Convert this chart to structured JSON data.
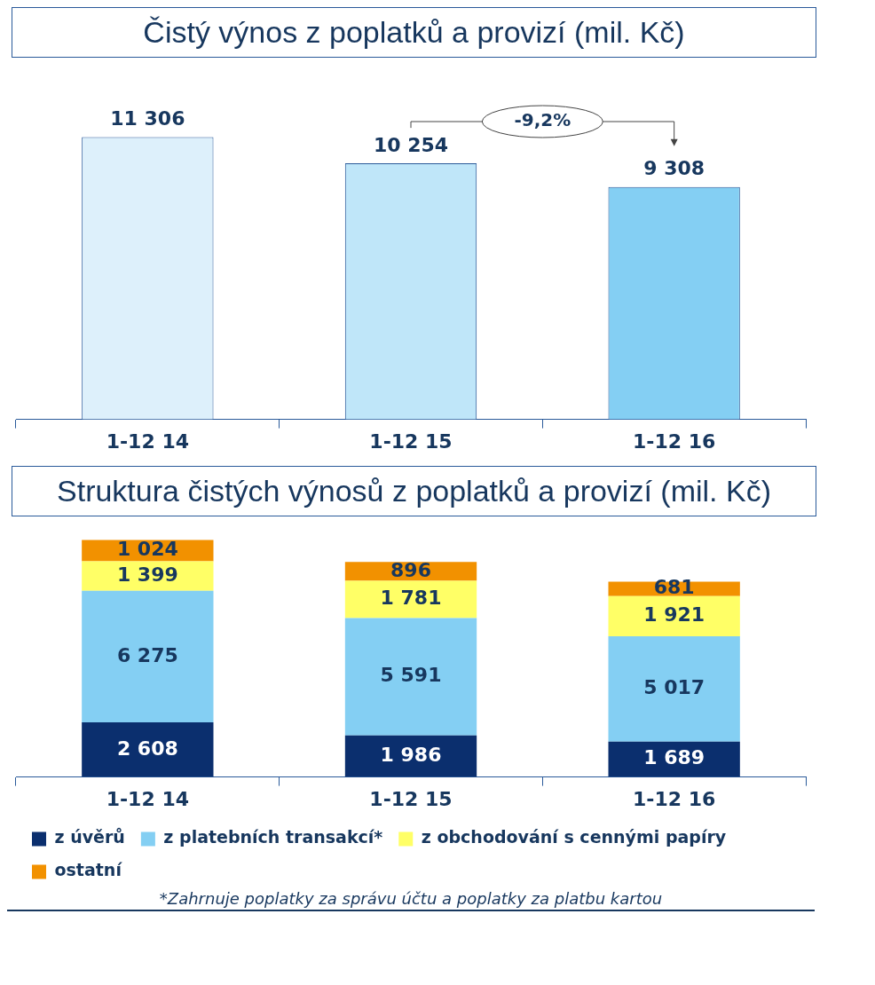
{
  "chart_data": [
    {
      "type": "bar",
      "title": "Čistý výnos z poplatků a provizí (mil. Kč)",
      "categories": [
        "1-12 14",
        "1-12 15",
        "1-12 16"
      ],
      "values": [
        11306,
        10254,
        9308
      ],
      "colors": [
        "#ddf0fb",
        "#bfe6f9",
        "#84cff3"
      ],
      "value_labels": [
        "11 306",
        "10 254",
        "9 308"
      ],
      "annotations": [
        "-9,2%"
      ],
      "legend": false
    },
    {
      "type": "bar",
      "title": "Struktura čistých výnosů z poplatků a provizí (mil. Kč)",
      "categories": [
        "1-12 14",
        "1-12 15",
        "1-12 16"
      ],
      "stacked": true,
      "series": [
        {
          "name": "z úvěrů",
          "color": "#0b2f6e",
          "values": [
            2608,
            1986,
            1689
          ],
          "value_labels": [
            "2 608",
            "1 986",
            "1 689"
          ]
        },
        {
          "name": "z platebních transakcí*",
          "color": "#84cff3",
          "values": [
            6275,
            5591,
            5017
          ],
          "value_labels": [
            "6 275",
            "5 591",
            "5 017"
          ]
        },
        {
          "name": "z obchodování s cennými papíry",
          "color": "#ffff66",
          "values": [
            1399,
            1781,
            1921
          ],
          "value_labels": [
            "1 399",
            "1 781",
            "1 921"
          ]
        },
        {
          "name": "ostatní",
          "color": "#f29100",
          "values": [
            1024,
            896,
            681
          ],
          "value_labels": [
            "1 024",
            "896",
            "681"
          ]
        }
      ],
      "legend": "bottom",
      "annotations": [
        "*Zahrnuje poplatky za správu účtu a poplatky za platbu kartou"
      ]
    }
  ]
}
